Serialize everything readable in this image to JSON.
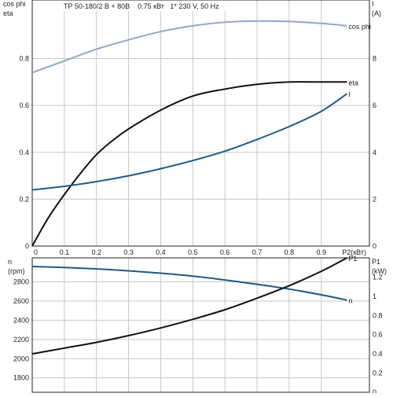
{
  "chart_data": [
    {
      "type": "line",
      "title": "TP 50-180/2 B + 80B    0.75 кВт   1* 230 V, 50 Hz",
      "grid": true,
      "x": {
        "label": "P2(кВт)",
        "min": 0,
        "max": 1.05,
        "ticks": [
          0,
          0.1,
          0.2,
          0.3,
          0.4,
          0.5,
          0.6,
          0.7,
          0.8,
          0.9
        ],
        "tick_labels": [
          "0",
          "0.1",
          "0.2",
          "0.3",
          "0.4",
          "0.5",
          "0.6",
          "0.7",
          "0.8",
          "0.9"
        ]
      },
      "y_left": {
        "labels": [
          "cos phi",
          "eta"
        ],
        "min": 0,
        "max": 1.05,
        "ticks": [
          0,
          0.2,
          0.4,
          0.6,
          0.8
        ],
        "tick_labels": [
          "0",
          "0.2",
          "0.4",
          "0.6",
          "0.8"
        ]
      },
      "y_right": {
        "labels": [
          "I",
          "(A)"
        ],
        "min": 0,
        "max": 10.5,
        "ticks": [
          0,
          2,
          4,
          6,
          8
        ],
        "tick_labels": [
          "0",
          "2",
          "4",
          "6",
          "8"
        ]
      },
      "series": [
        {
          "name": "cos phi",
          "axis": "left",
          "color": "#8faac4",
          "x": [
            0,
            0.1,
            0.2,
            0.3,
            0.4,
            0.5,
            0.6,
            0.7,
            0.8,
            0.9,
            0.98
          ],
          "y": [
            0.74,
            0.79,
            0.84,
            0.88,
            0.915,
            0.94,
            0.955,
            0.96,
            0.958,
            0.95,
            0.94
          ]
        },
        {
          "name": "eta",
          "axis": "left",
          "color": "#111111",
          "x": [
            0,
            0.05,
            0.1,
            0.15,
            0.2,
            0.25,
            0.3,
            0.4,
            0.5,
            0.6,
            0.7,
            0.8,
            0.9,
            0.98
          ],
          "y": [
            0,
            0.12,
            0.22,
            0.31,
            0.39,
            0.45,
            0.5,
            0.58,
            0.64,
            0.67,
            0.69,
            0.7,
            0.7,
            0.7
          ]
        },
        {
          "name": "I",
          "axis": "right",
          "color": "#1f5a85",
          "x": [
            0,
            0.1,
            0.2,
            0.3,
            0.4,
            0.5,
            0.6,
            0.7,
            0.8,
            0.9,
            0.98
          ],
          "y": [
            2.4,
            2.55,
            2.75,
            3.0,
            3.3,
            3.65,
            4.05,
            4.55,
            5.1,
            5.75,
            6.5
          ]
        }
      ]
    },
    {
      "type": "line",
      "grid": true,
      "x": {
        "min": 0,
        "max": 1.05
      },
      "y_left": {
        "labels": [
          "n",
          "(rpm)"
        ],
        "min": 1650,
        "max": 3050,
        "ticks": [
          1800,
          2000,
          2200,
          2400,
          2600,
          2800
        ],
        "tick_labels": [
          "1800",
          "2000",
          "2200",
          "2400",
          "2600",
          "2800"
        ]
      },
      "y_right": {
        "labels": [
          "P1",
          "(kW)"
        ],
        "min": 0,
        "max": 1.4,
        "ticks": [
          0,
          0.2,
          0.4,
          0.6,
          0.8,
          1,
          1.2
        ],
        "tick_labels": [
          "0",
          "0.2",
          "0.4",
          "0.6",
          "0.8",
          "1",
          "1.2"
        ]
      },
      "series": [
        {
          "name": "n",
          "axis": "left",
          "color": "#1f5a85",
          "x": [
            0,
            0.1,
            0.2,
            0.3,
            0.4,
            0.5,
            0.6,
            0.7,
            0.8,
            0.9,
            0.98
          ],
          "y": [
            2960,
            2950,
            2935,
            2915,
            2890,
            2860,
            2820,
            2775,
            2725,
            2665,
            2610
          ]
        },
        {
          "name": "P1",
          "axis": "right",
          "color": "#111111",
          "x": [
            0,
            0.1,
            0.2,
            0.3,
            0.4,
            0.5,
            0.6,
            0.7,
            0.8,
            0.9,
            0.98
          ],
          "y": [
            0.4,
            0.46,
            0.52,
            0.59,
            0.67,
            0.76,
            0.86,
            0.98,
            1.11,
            1.26,
            1.4
          ]
        }
      ]
    }
  ]
}
